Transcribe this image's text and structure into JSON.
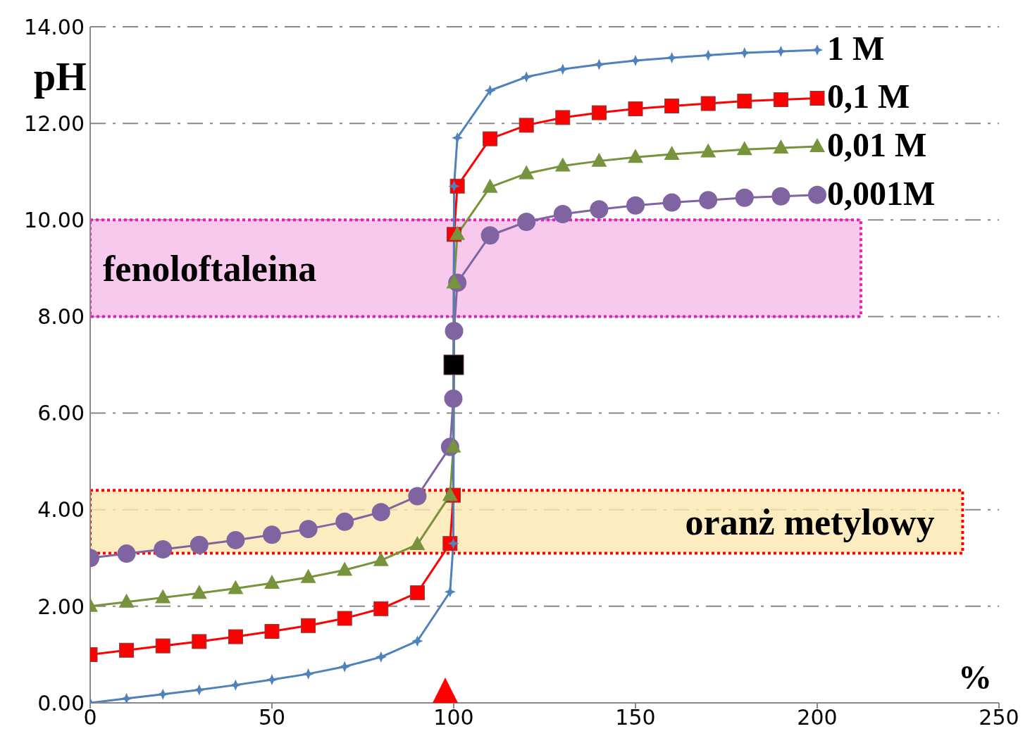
{
  "chart_data": {
    "type": "line",
    "xlabel": "%",
    "ylabel": "pH",
    "x": [
      0,
      10,
      20,
      30,
      40,
      50,
      60,
      70,
      80,
      90,
      99,
      99.9,
      100.1,
      101,
      110,
      120,
      130,
      140,
      150,
      160,
      170,
      180,
      190,
      200
    ],
    "series": [
      {
        "name": "1 M",
        "color": "#4f81bd",
        "marker": "star",
        "values": [
          0,
          0.09,
          0.18,
          0.27,
          0.37,
          0.48,
          0.6,
          0.75,
          0.95,
          1.28,
          2.3,
          3.3,
          10.7,
          11.7,
          12.68,
          12.96,
          13.12,
          13.22,
          13.3,
          13.36,
          13.41,
          13.46,
          13.49,
          13.52
        ]
      },
      {
        "name": "0,1 M",
        "color": "#ff0000",
        "marker": "square",
        "values": [
          1,
          1.09,
          1.18,
          1.27,
          1.37,
          1.48,
          1.6,
          1.75,
          1.95,
          2.28,
          3.3,
          4.3,
          9.7,
          10.7,
          11.68,
          11.96,
          12.12,
          12.22,
          12.3,
          12.36,
          12.41,
          12.46,
          12.49,
          12.52
        ]
      },
      {
        "name": "0,01 M",
        "color": "#77933c",
        "marker": "triangle",
        "values": [
          2,
          2.09,
          2.18,
          2.27,
          2.37,
          2.48,
          2.6,
          2.75,
          2.95,
          3.28,
          4.3,
          5.3,
          8.7,
          9.7,
          10.68,
          10.96,
          11.12,
          11.22,
          11.3,
          11.36,
          11.41,
          11.46,
          11.49,
          11.52
        ]
      },
      {
        "name": "0,001M",
        "color": "#8064a2",
        "marker": "circle",
        "values": [
          3,
          3.09,
          3.18,
          3.27,
          3.37,
          3.48,
          3.6,
          3.75,
          3.95,
          4.28,
          5.3,
          6.3,
          7.7,
          8.7,
          9.68,
          9.96,
          10.12,
          10.22,
          10.3,
          10.36,
          10.41,
          10.46,
          10.49,
          10.52
        ]
      },
      {
        "type": "scatter",
        "color": "#000000",
        "marker": "square",
        "x": [
          100
        ],
        "values": [
          7
        ]
      }
    ],
    "xlim": [
      0,
      250
    ],
    "xticks": [
      0,
      50,
      100,
      150,
      200,
      250
    ],
    "ylim": [
      0,
      14
    ],
    "yticks": [
      {
        "value": 0,
        "label": "0.00"
      },
      {
        "value": 2,
        "label": "2.00"
      },
      {
        "value": 4,
        "label": "4.00"
      },
      {
        "value": 6,
        "label": "6.00"
      },
      {
        "value": 8,
        "label": "8.00"
      },
      {
        "value": 10,
        "label": "10.00"
      },
      {
        "value": 12,
        "label": "12.00"
      },
      {
        "value": 14,
        "label": "14.00"
      }
    ],
    "grid": "y",
    "legend": false,
    "line_style": "solid",
    "bands": [
      {
        "axis": "y",
        "from": 8,
        "to": 10,
        "label": "fenoloftaleina",
        "color": "#f4bce8"
      },
      {
        "axis": "y",
        "from": 3.1,
        "to": 4.4,
        "label": "oranż metylowy",
        "color": "#fde7b0"
      }
    ]
  }
}
